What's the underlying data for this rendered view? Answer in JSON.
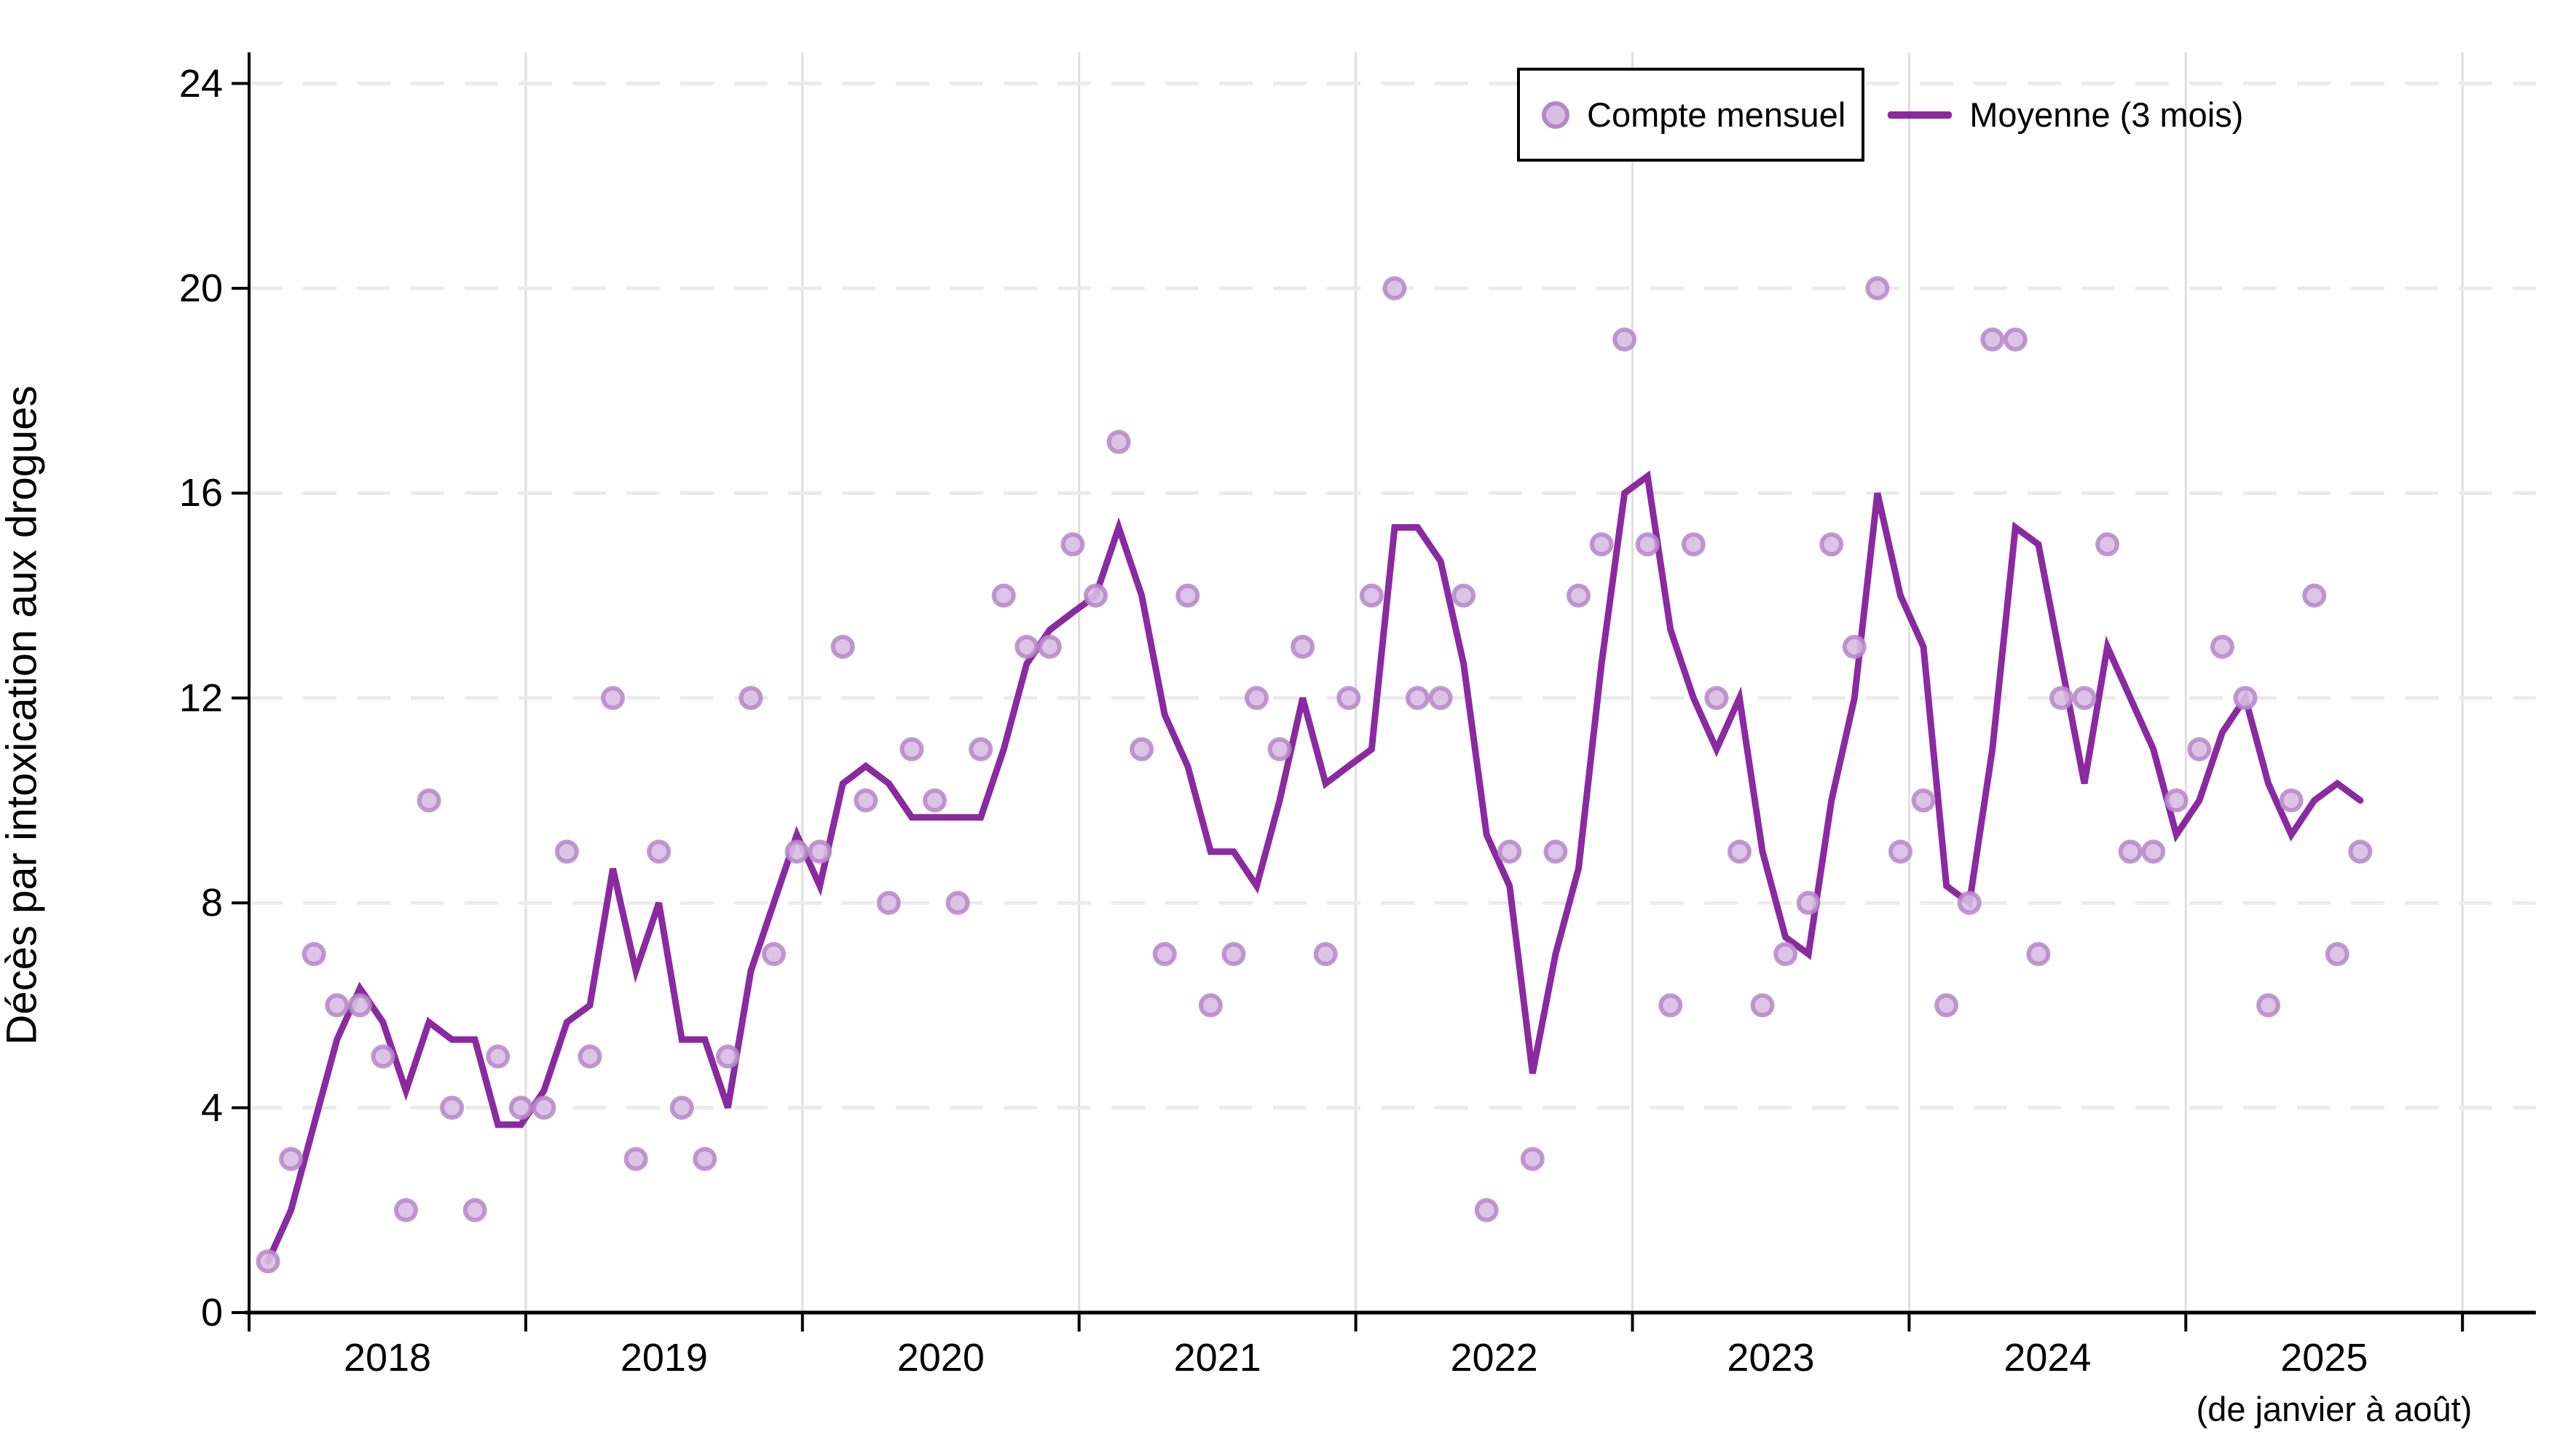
{
  "y_axis": {
    "title": "Décès par intoxication aux drogues",
    "tick_labels": [
      "0",
      "4",
      "8",
      "12",
      "16",
      "20",
      "24"
    ],
    "tick_values": [
      0,
      4,
      8,
      12,
      16,
      20,
      24
    ]
  },
  "x_axis": {
    "year_labels": [
      "2018",
      "2019",
      "2020",
      "2021",
      "2022",
      "2023",
      "2024",
      "2025"
    ],
    "note_under_2025": "(de janvier à août)"
  },
  "legend": {
    "monthly_label": "Compte mensuel",
    "average_label": "Moyenne (3 mois)"
  },
  "colors": {
    "background": "#ffffff",
    "axis": "#000000",
    "vertical_gridline": "#dedede",
    "horizontal_gridline": "#ebebeb",
    "marker_fill": "#d9bde3",
    "marker_ring": "#b587c7",
    "average_line": "#8a2aa0",
    "text": "#000000"
  },
  "chart_data": {
    "type": "scatter",
    "title": "",
    "xlabel": "",
    "ylabel": "Décès par intoxication aux drogues",
    "ylim": [
      0,
      24
    ],
    "grid": "horizontal dashed every 4, vertical solid at each January",
    "legend_position": "top-right inside plot",
    "x_start_month": "2018-01",
    "x_end_month": "2025-08",
    "monthly_counts_by_year": {
      "2018": [
        1,
        3,
        7,
        6,
        6,
        5,
        2,
        10,
        4,
        2,
        5,
        4
      ],
      "2019": [
        4,
        9,
        5,
        12,
        3,
        9,
        4,
        3,
        5,
        12,
        7,
        9
      ],
      "2020": [
        9,
        13,
        10,
        8,
        11,
        10,
        8,
        11,
        14,
        13,
        13,
        15
      ],
      "2021": [
        14,
        17,
        11,
        7,
        14,
        6,
        7,
        12,
        11,
        13,
        7,
        12
      ],
      "2022": [
        14,
        20,
        12,
        12,
        14,
        2,
        9,
        3,
        9,
        14,
        15,
        19
      ],
      "2023": [
        15,
        6,
        15,
        12,
        9,
        6,
        7,
        8,
        15,
        13,
        20,
        9
      ],
      "2024": [
        10,
        6,
        8,
        19,
        19,
        7,
        12,
        12,
        15,
        9,
        9,
        10
      ],
      "2025": [
        11,
        13,
        12,
        6,
        10,
        14,
        7,
        9
      ]
    },
    "series": [
      {
        "name": "Compte mensuel",
        "style": "circle markers",
        "values": [
          1,
          3,
          7,
          6,
          6,
          5,
          2,
          10,
          4,
          2,
          5,
          4,
          4,
          9,
          5,
          12,
          3,
          9,
          4,
          3,
          5,
          12,
          7,
          9,
          9,
          13,
          10,
          8,
          11,
          10,
          8,
          11,
          14,
          13,
          13,
          15,
          14,
          17,
          11,
          7,
          14,
          6,
          7,
          12,
          11,
          13,
          7,
          12,
          14,
          20,
          12,
          12,
          14,
          2,
          9,
          3,
          9,
          14,
          15,
          19,
          15,
          6,
          15,
          12,
          9,
          6,
          7,
          8,
          15,
          13,
          20,
          9,
          10,
          6,
          8,
          19,
          19,
          7,
          12,
          12,
          15,
          9,
          9,
          10,
          11,
          13,
          12,
          6,
          10,
          14,
          7,
          9
        ]
      },
      {
        "name": "Moyenne (3 mois)",
        "style": "line",
        "values": [
          1,
          2,
          3.67,
          5.33,
          6.33,
          5.67,
          4.33,
          5.67,
          5.33,
          5.33,
          3.67,
          3.67,
          4.33,
          5.67,
          6,
          8.67,
          6.67,
          8,
          5.33,
          5.33,
          4,
          6.67,
          8,
          9.33,
          8.33,
          10.33,
          10.67,
          10.33,
          9.67,
          9.67,
          9.67,
          9.67,
          11,
          12.67,
          13.33,
          13.67,
          14,
          15.33,
          14,
          11.67,
          10.67,
          9,
          9,
          8.33,
          10,
          12,
          10.33,
          10.67,
          11,
          15.33,
          15.33,
          14.67,
          12.67,
          9.33,
          8.33,
          4.67,
          7,
          8.67,
          12.67,
          16,
          16.33,
          13.33,
          12,
          11,
          12,
          9,
          7.33,
          7,
          10,
          12,
          16,
          14,
          13,
          8.33,
          8,
          11,
          15.33,
          15,
          12.67,
          10.33,
          13,
          12,
          11,
          9.33,
          10,
          11.33,
          12,
          10.33,
          9.33,
          10,
          10.33,
          10
        ]
      }
    ]
  }
}
